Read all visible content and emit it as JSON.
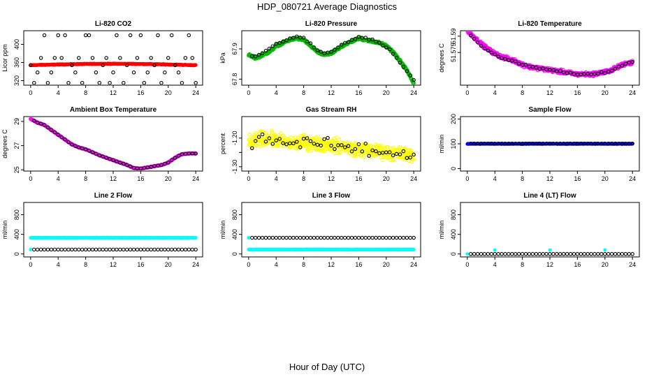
{
  "figure": {
    "title": "HDP_080721  Average Diagnostics",
    "xlabel": "Hour of Day (UTC)"
  },
  "chart_data": [
    {
      "type": "scatter",
      "title": "Li-820 CO2",
      "ylabel": "Licor ppm",
      "ylim": [
        310,
        430
      ],
      "yticks": [
        320,
        360,
        400
      ],
      "xlim": [
        -1,
        25
      ],
      "xticks": [
        0,
        4,
        8,
        12,
        16,
        20,
        24
      ],
      "series": [
        {
          "name": "dense",
          "color": "#ff0000",
          "filled": true,
          "pattern": "band",
          "center": 354,
          "amp": 3,
          "jitter": 1.2
        },
        {
          "name": "averages",
          "color": "#000000",
          "filled": false,
          "pattern": "points",
          "x": [
            0,
            0.5,
            1,
            1.5,
            2,
            2.5,
            3,
            3.5,
            4,
            4.5,
            5,
            5.5,
            6,
            6.5,
            7,
            7.5,
            8,
            8.5,
            9,
            9.5,
            10,
            10.5,
            11,
            11.5,
            12,
            12.5,
            13,
            13.5,
            14,
            14.5,
            15,
            15.5,
            16,
            16.5,
            17,
            17.5,
            18,
            18.5,
            19,
            19.5,
            20,
            20.5,
            21,
            21.5,
            22,
            22.5,
            23,
            23.5,
            24
          ],
          "y": [
            354,
            315,
            338,
            370,
            420,
            315,
            338,
            370,
            420,
            370,
            420,
            315,
            354,
            338,
            370,
            315,
            420,
            420,
            370,
            338,
            315,
            354,
            370,
            315,
            338,
            420,
            370,
            315,
            354,
            420,
            338,
            370,
            420,
            315,
            338,
            370,
            354,
            420,
            315,
            338,
            370,
            420,
            354,
            338,
            315,
            370,
            420,
            370,
            315
          ]
        }
      ]
    },
    {
      "type": "scatter",
      "title": "Li-820 Pressure",
      "ylabel": "kPa",
      "ylim": [
        67.78,
        67.96
      ],
      "yticks": [
        67.8,
        67.9
      ],
      "xlim": [
        -1,
        25
      ],
      "xticks": [
        0,
        4,
        8,
        12,
        16,
        20,
        24
      ],
      "series": [
        {
          "name": "dense",
          "color": "#00bb00",
          "filled": false,
          "pattern": "curve",
          "jitter": 0.006,
          "x": [
            0,
            1,
            2,
            3,
            4,
            5,
            6,
            7,
            8,
            9,
            10,
            11,
            12,
            13,
            14,
            15,
            16,
            17,
            18,
            19,
            20,
            21,
            22,
            23,
            24
          ],
          "y": [
            67.88,
            67.87,
            67.88,
            67.89,
            67.91,
            67.92,
            67.93,
            67.935,
            67.93,
            67.91,
            67.89,
            67.88,
            67.885,
            67.9,
            67.915,
            67.925,
            67.935,
            67.93,
            67.925,
            67.92,
            67.91,
            67.89,
            67.86,
            67.83,
            67.785
          ]
        },
        {
          "name": "averages",
          "color": "#000000",
          "filled": false,
          "pattern": "curve",
          "jitter": 0.004,
          "step": 0.5,
          "x": [
            0,
            1,
            2,
            3,
            4,
            5,
            6,
            7,
            8,
            9,
            10,
            11,
            12,
            13,
            14,
            15,
            16,
            17,
            18,
            19,
            20,
            21,
            22,
            23,
            24
          ],
          "y": [
            67.88,
            67.875,
            67.885,
            67.9,
            67.915,
            67.925,
            67.935,
            67.94,
            67.935,
            67.915,
            67.895,
            67.885,
            67.89,
            67.905,
            67.92,
            67.93,
            67.94,
            67.935,
            67.93,
            67.92,
            67.905,
            67.885,
            67.855,
            67.825,
            67.8
          ]
        }
      ]
    },
    {
      "type": "scatter",
      "title": "Li-820 Temperature",
      "ylabel": "degrees C",
      "ylim": [
        51.545,
        51.595
      ],
      "yticks": [
        51.575,
        51.59
      ],
      "xlim": [
        -1,
        25
      ],
      "xticks": [
        0,
        4,
        8,
        12,
        16,
        20,
        24
      ],
      "series": [
        {
          "name": "dense",
          "color": "#ff00ff",
          "filled": false,
          "pattern": "curve",
          "jitter": 0.0025,
          "x": [
            0,
            1,
            2,
            3,
            4,
            5,
            6,
            7,
            8,
            9,
            10,
            11,
            12,
            13,
            14,
            15,
            16,
            17,
            18,
            19,
            20,
            21,
            22,
            23,
            24
          ],
          "y": [
            51.595,
            51.589,
            51.583,
            51.578,
            51.574,
            51.571,
            51.569,
            51.567,
            51.564,
            51.562,
            51.561,
            51.56,
            51.559,
            51.558,
            51.557,
            51.556,
            51.555,
            51.555,
            51.555,
            51.556,
            51.557,
            51.559,
            51.562,
            51.565,
            51.566
          ]
        },
        {
          "name": "averages",
          "color": "#000000",
          "filled": false,
          "pattern": "curve",
          "jitter": 0.0015,
          "step": 0.5,
          "x": [
            0,
            1,
            2,
            3,
            4,
            5,
            6,
            7,
            8,
            9,
            10,
            11,
            12,
            13,
            14,
            15,
            16,
            17,
            18,
            19,
            20,
            21,
            22,
            23,
            24
          ],
          "y": [
            51.594,
            51.588,
            51.582,
            51.577,
            51.573,
            51.57,
            51.568,
            51.566,
            51.564,
            51.562,
            51.561,
            51.56,
            51.559,
            51.558,
            51.557,
            51.556,
            51.555,
            51.555,
            51.555,
            51.556,
            51.557,
            51.559,
            51.562,
            51.565,
            51.566
          ]
        }
      ]
    },
    {
      "type": "scatter",
      "title": "Ambient Box Temperature",
      "ylabel": "degrees C",
      "ylim": [
        24.9,
        29.4
      ],
      "yticks": [
        25,
        27,
        29
      ],
      "xlim": [
        -1,
        25
      ],
      "xticks": [
        0,
        4,
        8,
        12,
        16,
        20,
        24
      ],
      "series": [
        {
          "name": "dense",
          "color": "#ff00ff",
          "filled": false,
          "pattern": "curve",
          "jitter": 0.03,
          "x": [
            0,
            1,
            2,
            3,
            4,
            5,
            6,
            7,
            8,
            9,
            10,
            11,
            12,
            13,
            14,
            15,
            16,
            17,
            18,
            19,
            20,
            21,
            22,
            23,
            24
          ],
          "y": [
            29.2,
            28.9,
            28.7,
            28.3,
            27.9,
            27.5,
            27.1,
            26.85,
            26.7,
            26.45,
            26.2,
            26.0,
            25.8,
            25.6,
            25.4,
            25.15,
            25.1,
            25.2,
            25.3,
            25.4,
            25.6,
            26.0,
            26.3,
            26.35,
            26.35
          ]
        },
        {
          "name": "averages",
          "color": "#000000",
          "filled": false,
          "pattern": "curve",
          "jitter": 0.02,
          "step": 0.5,
          "x": [
            0,
            1,
            2,
            3,
            4,
            5,
            6,
            7,
            8,
            9,
            10,
            11,
            12,
            13,
            14,
            15,
            16,
            17,
            18,
            19,
            20,
            21,
            22,
            23,
            24
          ],
          "y": [
            29.2,
            28.9,
            28.7,
            28.3,
            27.9,
            27.5,
            27.1,
            26.85,
            26.7,
            26.45,
            26.2,
            26.0,
            25.8,
            25.6,
            25.4,
            25.15,
            25.1,
            25.2,
            25.3,
            25.4,
            25.6,
            26.0,
            26.3,
            26.35,
            26.35
          ]
        }
      ]
    },
    {
      "type": "scatter",
      "title": "Gas Stream RH",
      "ylabel": "percent",
      "ylim": [
        -1.315,
        -1.125
      ],
      "yticks": [
        -1.3,
        -1.25,
        -1.2
      ],
      "ytick_labels": [
        "-1.30",
        "",
        "-1.20"
      ],
      "xlim": [
        -1,
        25
      ],
      "xticks": [
        0,
        4,
        8,
        12,
        16,
        20,
        24
      ],
      "series": [
        {
          "name": "dense",
          "color": "#ffff00",
          "filled": false,
          "pattern": "curve",
          "jitter": 0.035,
          "x": [
            0,
            2,
            4,
            6,
            8,
            10,
            12,
            14,
            16,
            18,
            20,
            22,
            24
          ],
          "y": [
            -1.22,
            -1.2,
            -1.205,
            -1.22,
            -1.215,
            -1.22,
            -1.225,
            -1.23,
            -1.24,
            -1.245,
            -1.25,
            -1.255,
            -1.26
          ]
        },
        {
          "name": "averages",
          "color": "#000000",
          "filled": false,
          "pattern": "curve",
          "jitter": 0.03,
          "step": 0.5,
          "x": [
            0,
            2,
            4,
            6,
            8,
            10,
            12,
            14,
            16,
            18,
            20,
            22,
            24
          ],
          "y": [
            -1.22,
            -1.2,
            -1.205,
            -1.22,
            -1.215,
            -1.22,
            -1.225,
            -1.23,
            -1.24,
            -1.245,
            -1.25,
            -1.255,
            -1.26
          ]
        }
      ]
    },
    {
      "type": "scatter",
      "title": "Sample Flow",
      "ylabel": "ml/min",
      "ylim": [
        -10,
        210
      ],
      "yticks": [
        0,
        100,
        200
      ],
      "xlim": [
        -1,
        25
      ],
      "xticks": [
        0,
        4,
        8,
        12,
        16,
        20,
        24
      ],
      "series": [
        {
          "name": "dense",
          "color": "#0000ff",
          "filled": true,
          "pattern": "band",
          "center": 100,
          "amp": 0,
          "jitter": 1.5
        },
        {
          "name": "averages",
          "color": "#000000",
          "filled": false,
          "pattern": "flat",
          "value": 101,
          "step": 0.5
        }
      ]
    },
    {
      "type": "scatter",
      "title": "Line 2 Flow",
      "ylabel": "ml/min",
      "ylim": [
        -60,
        1050
      ],
      "yticks": [
        0,
        400,
        800
      ],
      "xlim": [
        -1,
        25
      ],
      "xticks": [
        0,
        4,
        8,
        12,
        16,
        20,
        24
      ],
      "series": [
        {
          "name": "dense",
          "color": "#00ffff",
          "filled": true,
          "pattern": "band",
          "center": 330,
          "amp": 0,
          "jitter": 6
        },
        {
          "name": "dense-low",
          "color": "#00ffff",
          "filled": true,
          "pattern": "points",
          "x": [
            0
          ],
          "y": [
            90
          ]
        },
        {
          "name": "averages",
          "color": "#000000",
          "filled": false,
          "pattern": "flat",
          "value": 90,
          "step": 0.5
        }
      ]
    },
    {
      "type": "scatter",
      "title": "Line 3 Flow",
      "ylabel": "ml/min",
      "ylim": [
        -60,
        1050
      ],
      "yticks": [
        0,
        400,
        800
      ],
      "xlim": [
        -1,
        25
      ],
      "xticks": [
        0,
        4,
        8,
        12,
        16,
        20,
        24
      ],
      "series": [
        {
          "name": "dense",
          "color": "#00ffff",
          "filled": true,
          "pattern": "band",
          "center": 90,
          "amp": 0,
          "jitter": 6
        },
        {
          "name": "dense-high",
          "color": "#00ffff",
          "filled": true,
          "pattern": "points",
          "x": [
            0
          ],
          "y": [
            330
          ]
        },
        {
          "name": "averages",
          "color": "#000000",
          "filled": false,
          "pattern": "flat",
          "value": 330,
          "step": 0.5
        }
      ]
    },
    {
      "type": "scatter",
      "title": "Line 4 (LT) Flow",
      "ylabel": "ml/min",
      "ylim": [
        -60,
        1050
      ],
      "yticks": [
        0,
        400,
        800
      ],
      "xlim": [
        -1,
        25
      ],
      "xticks": [
        0,
        4,
        8,
        12,
        16,
        20,
        24
      ],
      "series": [
        {
          "name": "dense",
          "color": "#00ffff",
          "filled": true,
          "pattern": "points",
          "x": [
            0,
            4,
            12,
            20
          ],
          "y": [
            0,
            80,
            80,
            80
          ]
        },
        {
          "name": "averages",
          "color": "#000000",
          "filled": false,
          "pattern": "flat",
          "value": 0,
          "step": 0.5
        }
      ]
    }
  ]
}
